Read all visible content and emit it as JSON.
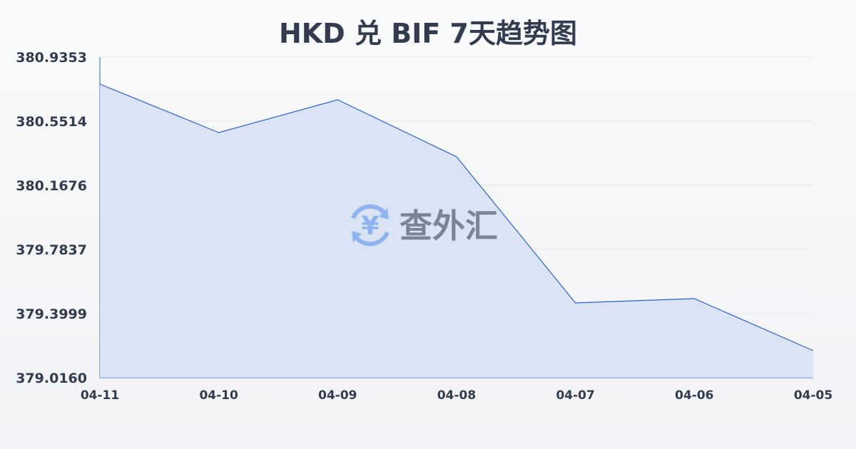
{
  "chart_data": {
    "type": "area",
    "title": "HKD 兑 BIF 7天趋势图",
    "xlabel": "",
    "ylabel": "",
    "categories": [
      "04-11",
      "04-10",
      "04-09",
      "04-08",
      "04-07",
      "04-06",
      "04-05"
    ],
    "values": [
      380.7732,
      380.4832,
      380.6794,
      380.3382,
      379.4639,
      379.4895,
      379.1781
    ],
    "yticks": [
      "380.9353",
      "380.5514",
      "380.1676",
      "379.7837",
      "379.3999",
      "379.0160"
    ],
    "ylim": [
      379.016,
      380.9353
    ],
    "grid": true,
    "colors": {
      "line": "#2e62c9",
      "fill": "#d6e1f5",
      "text": "#333c4e"
    }
  },
  "watermark": {
    "text": "查外汇",
    "icon": "yen-exchange-icon"
  }
}
